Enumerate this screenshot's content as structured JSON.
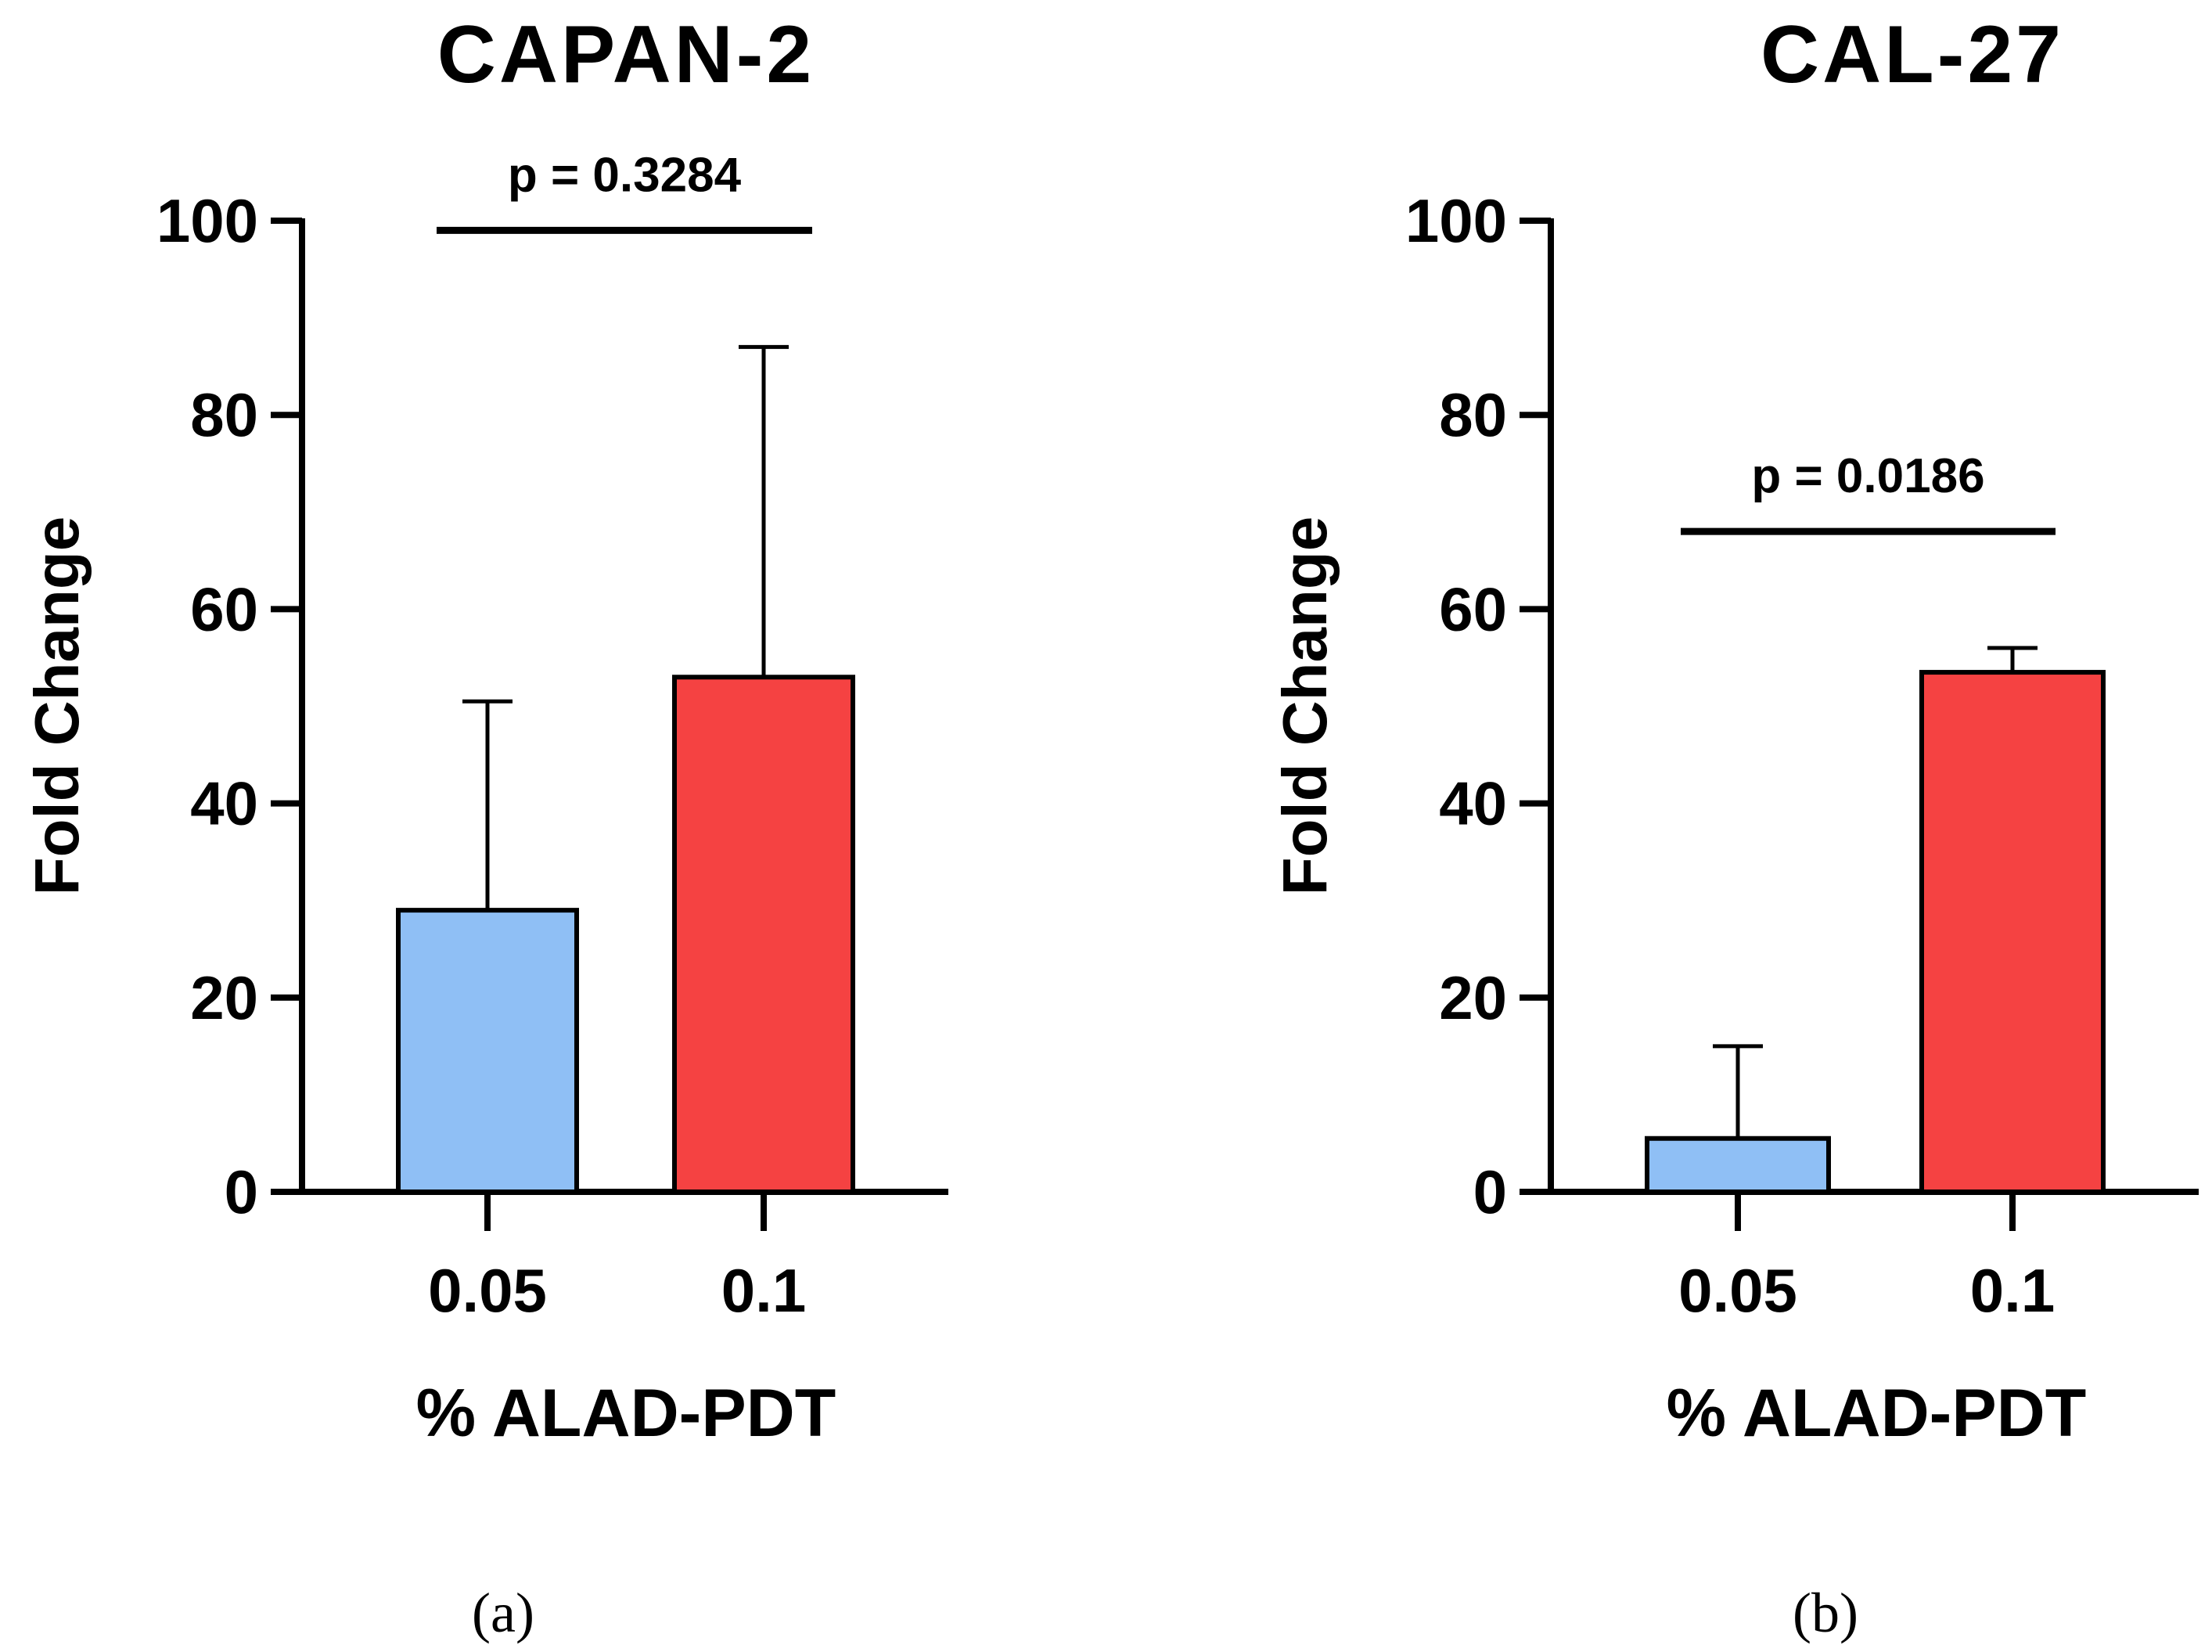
{
  "chart_data": [
    {
      "type": "bar",
      "title": "CAPAN-2",
      "panel_label": "(a)",
      "xlabel": "% ALAD-PDT",
      "ylabel": "Fold Change",
      "categories": [
        "0.05",
        "0.1"
      ],
      "values": [
        29,
        53
      ],
      "error_upper": [
        50.5,
        87
      ],
      "colors": [
        "#8FBFF5",
        "#F54242"
      ],
      "ylim": [
        0,
        100
      ],
      "yticks": [
        "0",
        "20",
        "40",
        "60",
        "80",
        "100"
      ],
      "significance": {
        "text": "p = 0.3284",
        "level": 99
      }
    },
    {
      "type": "bar",
      "title": "CAL-27",
      "panel_label": "(b)",
      "xlabel": "% ALAD-PDT",
      "ylabel": "Fold Change",
      "categories": [
        "0.05",
        "0.1"
      ],
      "values": [
        5.5,
        53.5
      ],
      "error_upper": [
        15,
        56
      ],
      "colors": [
        "#8FBFF5",
        "#F54242"
      ],
      "ylim": [
        0,
        100
      ],
      "yticks": [
        "0",
        "20",
        "40",
        "60",
        "80",
        "100"
      ],
      "significance": {
        "text": "p = 0.0186",
        "level": 68
      }
    }
  ]
}
